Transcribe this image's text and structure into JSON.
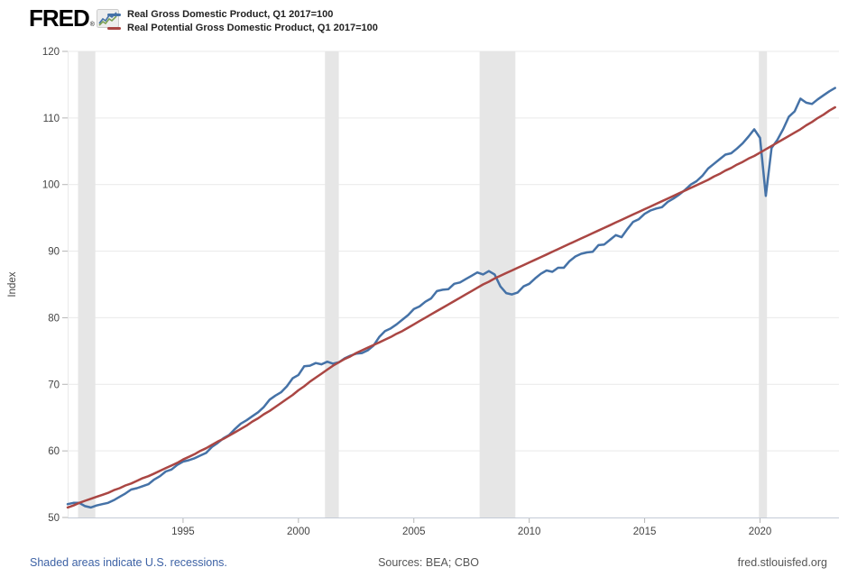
{
  "header": {
    "logo_text": "FRED",
    "logo_registered_mark": "®",
    "legend": [
      {
        "label": "Real Gross Domestic Product, Q1 2017=100",
        "color": "#4572a7"
      },
      {
        "label": "Real Potential Gross Domestic Product, Q1 2017=100",
        "color": "#aa4643"
      }
    ]
  },
  "footer": {
    "recession_note": "Shaded areas indicate U.S. recessions.",
    "sources": "Sources: BEA; CBO",
    "site": "fred.stlouisfed.org"
  },
  "chart_data": {
    "type": "line",
    "title": "",
    "xlabel": "",
    "ylabel": "Index",
    "ylim": [
      50,
      120
    ],
    "xlim": [
      1990,
      2023.42
    ],
    "x_ticks": [
      1995,
      2000,
      2005,
      2010,
      2015,
      2020
    ],
    "y_ticks": [
      50,
      60,
      70,
      80,
      90,
      100,
      110,
      120
    ],
    "grid": "horizontal",
    "legend_position": "top-left",
    "x_start": 1990.0,
    "x_step": 0.25,
    "x_unit": "year (quarterly observations)",
    "recession_band_color": "#e6e6e6",
    "recession_bands": [
      [
        1990.45,
        1991.2
      ],
      [
        2001.15,
        2001.75
      ],
      [
        2007.85,
        2009.4
      ],
      [
        2019.95,
        2020.3
      ]
    ],
    "series": [
      {
        "name": "Real Gross Domestic Product, Q1 2017=100",
        "color": "#4572a7",
        "values": [
          52.0,
          52.2,
          52.2,
          51.7,
          51.5,
          51.8,
          52.0,
          52.2,
          52.6,
          53.1,
          53.6,
          54.2,
          54.4,
          54.7,
          55.0,
          55.7,
          56.2,
          56.9,
          57.2,
          57.9,
          58.4,
          58.6,
          58.9,
          59.3,
          59.7,
          60.6,
          61.2,
          61.9,
          62.4,
          63.3,
          64.1,
          64.6,
          65.2,
          65.8,
          66.6,
          67.7,
          68.3,
          68.8,
          69.7,
          70.9,
          71.4,
          72.7,
          72.8,
          73.2,
          73.0,
          73.4,
          73.1,
          73.3,
          73.9,
          74.3,
          74.6,
          74.7,
          75.1,
          75.8,
          77.1,
          78.0,
          78.4,
          79.0,
          79.7,
          80.4,
          81.3,
          81.7,
          82.4,
          82.9,
          84.0,
          84.2,
          84.3,
          85.1,
          85.3,
          85.8,
          86.3,
          86.8,
          86.5,
          87.0,
          86.5,
          84.7,
          83.7,
          83.5,
          83.8,
          84.7,
          85.1,
          85.9,
          86.6,
          87.1,
          86.9,
          87.5,
          87.5,
          88.5,
          89.2,
          89.6,
          89.8,
          89.9,
          90.9,
          91.0,
          91.7,
          92.4,
          92.1,
          93.3,
          94.4,
          94.8,
          95.6,
          96.1,
          96.4,
          96.6,
          97.4,
          97.9,
          98.5,
          99.2,
          100.0,
          100.5,
          101.3,
          102.4,
          103.1,
          103.8,
          104.5,
          104.7,
          105.4,
          106.2,
          107.2,
          108.3,
          107.0,
          98.3,
          105.5,
          106.7,
          108.3,
          110.2,
          111.0,
          112.9,
          112.3,
          112.1,
          112.8,
          113.4,
          114.0,
          114.5
        ]
      },
      {
        "name": "Real Potential Gross Domestic Product, Q1 2017=100",
        "color": "#aa4643",
        "values": [
          51.5,
          51.8,
          52.2,
          52.5,
          52.8,
          53.1,
          53.4,
          53.7,
          54.1,
          54.4,
          54.8,
          55.1,
          55.5,
          55.9,
          56.2,
          56.6,
          57.0,
          57.4,
          57.8,
          58.2,
          58.7,
          59.1,
          59.5,
          60.0,
          60.4,
          60.9,
          61.4,
          61.8,
          62.3,
          62.8,
          63.3,
          63.8,
          64.4,
          64.9,
          65.5,
          66.0,
          66.6,
          67.2,
          67.8,
          68.4,
          69.1,
          69.7,
          70.4,
          71.0,
          71.6,
          72.2,
          72.8,
          73.3,
          73.8,
          74.2,
          74.7,
          75.1,
          75.5,
          75.9,
          76.3,
          76.7,
          77.1,
          77.6,
          78.0,
          78.5,
          79.0,
          79.5,
          80.0,
          80.5,
          81.0,
          81.5,
          82.0,
          82.5,
          83.0,
          83.5,
          84.0,
          84.5,
          85.0,
          85.4,
          85.9,
          86.3,
          86.7,
          87.1,
          87.5,
          87.9,
          88.3,
          88.7,
          89.1,
          89.5,
          89.9,
          90.3,
          90.7,
          91.1,
          91.5,
          91.9,
          92.3,
          92.7,
          93.1,
          93.5,
          93.9,
          94.3,
          94.7,
          95.1,
          95.5,
          95.9,
          96.3,
          96.7,
          97.1,
          97.5,
          97.9,
          98.3,
          98.7,
          99.1,
          99.5,
          99.9,
          100.3,
          100.7,
          101.2,
          101.6,
          102.1,
          102.5,
          103.0,
          103.4,
          103.9,
          104.3,
          104.8,
          105.3,
          105.8,
          106.3,
          106.8,
          107.3,
          107.8,
          108.3,
          108.9,
          109.4,
          110.0,
          110.5,
          111.1,
          111.6
        ]
      }
    ]
  }
}
